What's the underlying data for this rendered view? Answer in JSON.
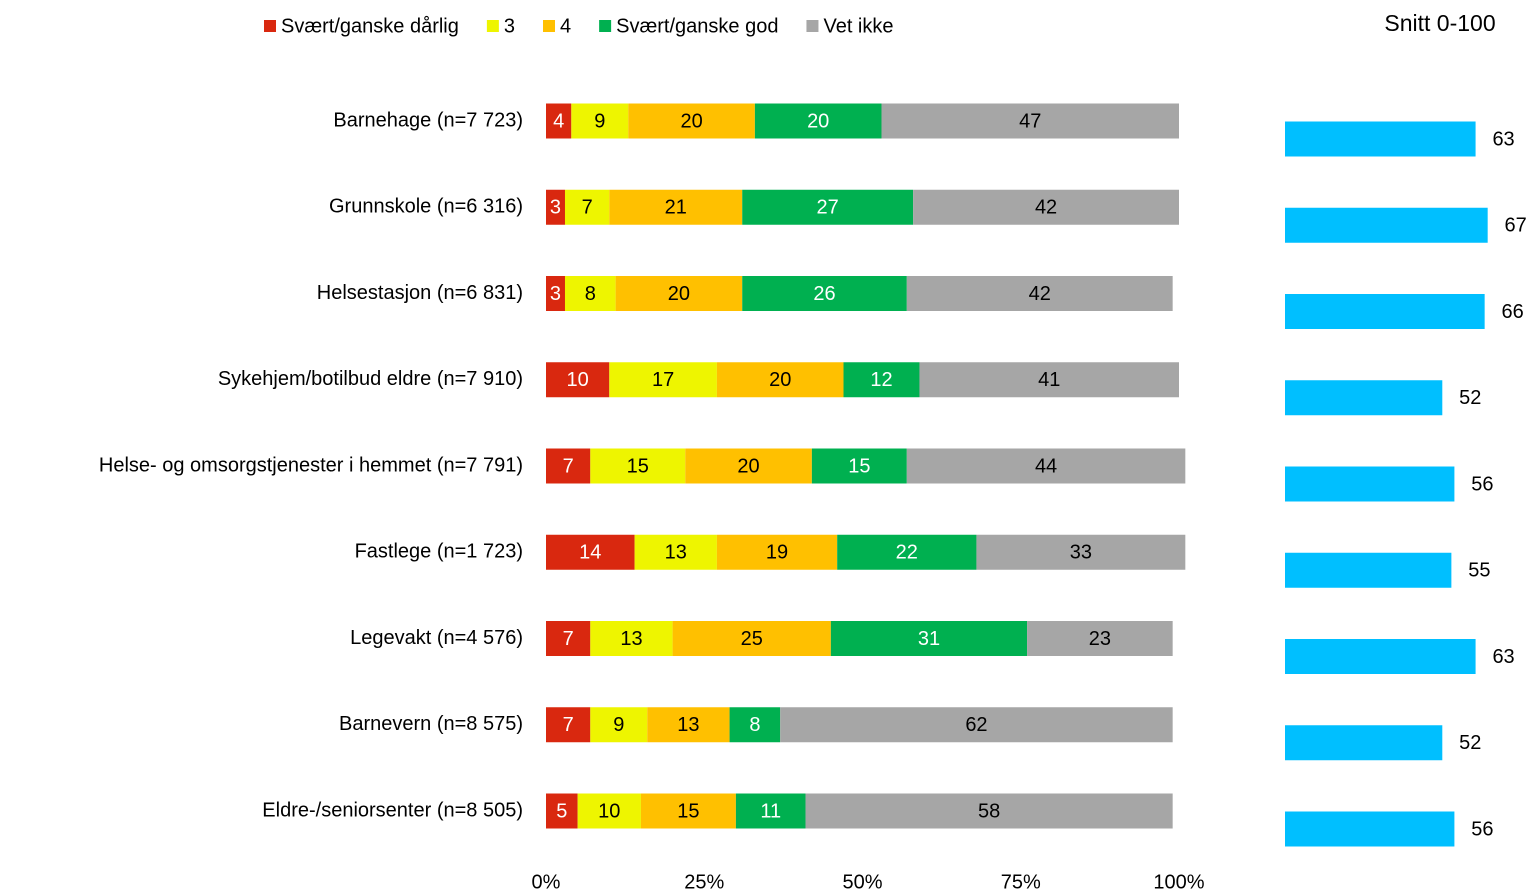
{
  "chart_data": [
    {
      "type": "stacked-bar-horizontal",
      "categories": [
        "Barnehage (n=7 723)",
        "Grunnskole (n=6 316)",
        "Helsestasjon (n=6 831)",
        "Sykehjem/botilbud eldre (n=7 910)",
        "Helse- og omsorgstjenester i hemmet (n=7 791)",
        "Fastlege (n=1 723)",
        "Legevakt (n=4 576)",
        "Barnevern (n=8 575)",
        "Eldre-/seniorsenter (n=8 505)"
      ],
      "series": [
        {
          "name": "Svært/ganske dårlig",
          "color": "#d9280f",
          "values": [
            4,
            3,
            3,
            10,
            7,
            14,
            7,
            7,
            5
          ]
        },
        {
          "name": "3",
          "color": "#eef500",
          "values": [
            9,
            7,
            8,
            17,
            15,
            13,
            13,
            9,
            10
          ]
        },
        {
          "name": "4",
          "color": "#ffc000",
          "values": [
            20,
            21,
            20,
            20,
            20,
            19,
            25,
            13,
            15
          ]
        },
        {
          "name": "Svært/ganske god",
          "color": "#00b050",
          "values": [
            20,
            27,
            26,
            12,
            15,
            22,
            31,
            8,
            11
          ]
        },
        {
          "name": "Vet ikke",
          "color": "#a6a6a6",
          "values": [
            47,
            42,
            42,
            41,
            44,
            33,
            23,
            62,
            58
          ]
        }
      ],
      "xlim": [
        0,
        100
      ],
      "xticks": [
        {
          "value": 0,
          "label": "0%"
        },
        {
          "value": 25,
          "label": "25%"
        },
        {
          "value": 50,
          "label": "50%"
        },
        {
          "value": 75,
          "label": "75%"
        },
        {
          "value": 100,
          "label": "100%"
        }
      ],
      "legend": "top"
    },
    {
      "type": "bar-horizontal",
      "title": "Snitt 0-100",
      "color": "#00bfff",
      "values": [
        63,
        67,
        66,
        52,
        56,
        55,
        63,
        52,
        56
      ],
      "xlim": [
        0,
        80
      ]
    }
  ]
}
